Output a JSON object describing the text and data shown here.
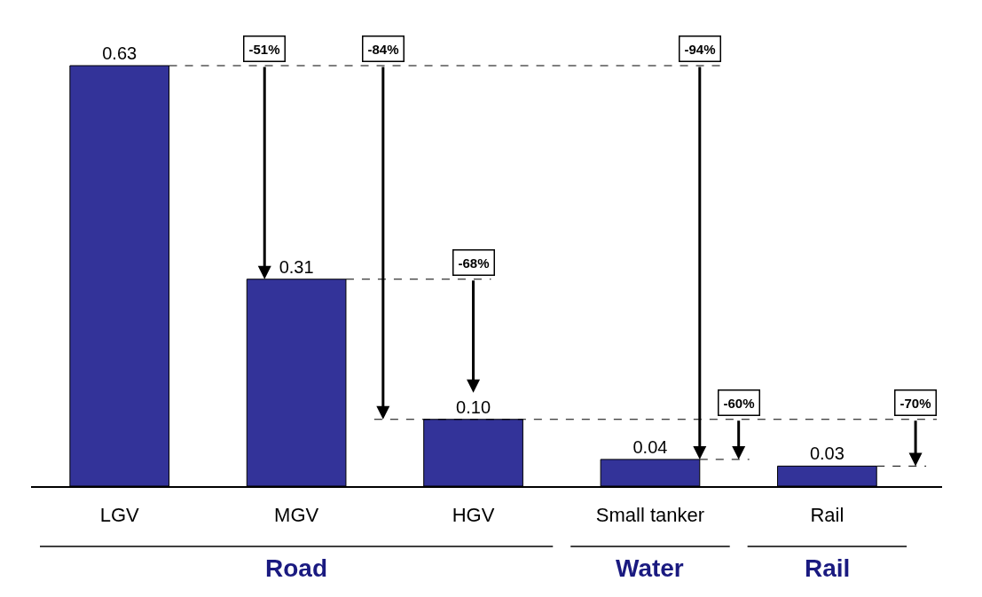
{
  "chart_data": {
    "type": "bar",
    "categories": [
      "LGV",
      "MGV",
      "HGV",
      "Small tanker",
      "Rail"
    ],
    "values": [
      0.63,
      0.31,
      0.1,
      0.04,
      0.03
    ],
    "color": "#333399",
    "value_labels": [
      "0.63",
      "0.31",
      "0.10",
      "0.04",
      "0.03"
    ],
    "grid": false,
    "tick_labels": "x",
    "ref_lines": [
      {
        "axis": "y",
        "value": 0.63,
        "line_style": "dashed"
      },
      {
        "axis": "y",
        "value": 0.31,
        "line_style": "dashed"
      },
      {
        "axis": "y",
        "value": 0.1,
        "line_style": "dashed"
      }
    ],
    "annotations": [
      "-51%",
      "-84%",
      "-68%",
      "-94%",
      "-60%",
      "-70%",
      "Road",
      "Water",
      "Rail"
    ]
  }
}
